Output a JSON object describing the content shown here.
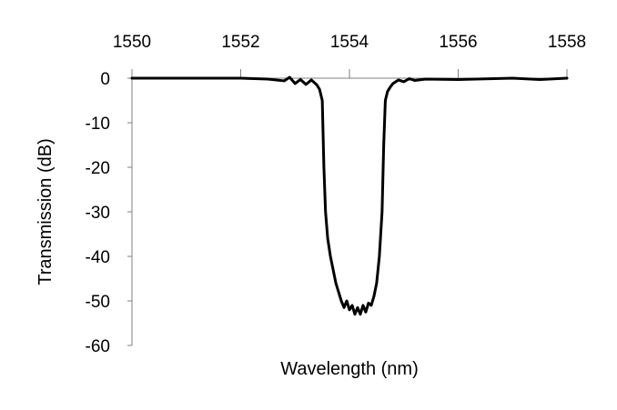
{
  "chart_data": {
    "type": "line",
    "title": "",
    "xlabel": "Wavelength (nm)",
    "ylabel": "Transmission (dB)",
    "xlim": [
      1550,
      1558
    ],
    "ylim": [
      -60,
      0
    ],
    "x_axis_position": "top",
    "x_ticks": [
      1550,
      1552,
      1554,
      1556,
      1558
    ],
    "y_ticks": [
      0,
      -10,
      -20,
      -30,
      -40,
      -50,
      -60
    ],
    "grid": false,
    "legend": "none",
    "line_color": "#000000",
    "series": [
      {
        "x": [
          1550.0,
          1552.0,
          1552.5,
          1552.8,
          1552.9,
          1553.0,
          1553.1,
          1553.2,
          1553.3,
          1553.4,
          1553.45,
          1553.5,
          1553.53,
          1553.56,
          1553.6,
          1553.65,
          1553.7,
          1553.75,
          1553.8,
          1553.85,
          1553.9,
          1553.95,
          1554.0,
          1554.05,
          1554.1,
          1554.15,
          1554.2,
          1554.25,
          1554.3,
          1554.35,
          1554.4,
          1554.45,
          1554.5,
          1554.55,
          1554.6,
          1554.63,
          1554.66,
          1554.7,
          1554.75,
          1554.8,
          1554.9,
          1555.0,
          1555.1,
          1555.2,
          1555.4,
          1556.0,
          1557.0,
          1557.5,
          1558.0
        ],
        "y": [
          0,
          0,
          -0.2,
          -0.6,
          0.2,
          -1.2,
          -0.3,
          -1.4,
          -0.4,
          -1.5,
          -2.5,
          -5,
          -20,
          -30,
          -36,
          -40,
          -43,
          -46,
          -48,
          -50,
          -51.5,
          -50,
          -52,
          -51,
          -53,
          -51.5,
          -53,
          -51,
          -52.5,
          -50.5,
          -51,
          -49,
          -46,
          -40,
          -30,
          -15,
          -5,
          -3,
          -2,
          -1.2,
          -0.4,
          -0.8,
          -0.1,
          -0.5,
          -0.2,
          -0.3,
          0,
          -0.3,
          0
        ]
      }
    ]
  }
}
